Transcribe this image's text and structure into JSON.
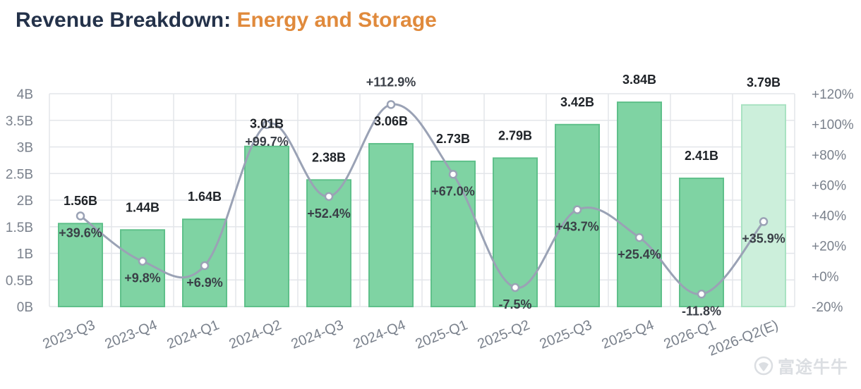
{
  "header": {
    "title_prefix": "Revenue Breakdown:",
    "title_highlight": "Energy and Storage"
  },
  "watermark": {
    "text": "富途牛牛",
    "icon": "futu-bull-logo-icon"
  },
  "colors": {
    "title": "#24324a",
    "highlight": "#e08a3c",
    "bar_fill": "#7fd3a3",
    "bar_stroke": "#5fc08a",
    "bar_estimate_fill": "#ccefdb",
    "bar_estimate_stroke": "#a9e2c2",
    "line": "#9aa2b5",
    "grid": "#e3e6ea",
    "axis_text": "#7a818c",
    "label_text": "#1f2328"
  },
  "chart_data": {
    "type": "bar",
    "title": "Revenue Breakdown: Energy and Storage",
    "categories": [
      "2023-Q3",
      "2023-Q4",
      "2024-Q1",
      "2024-Q2",
      "2024-Q3",
      "2024-Q4",
      "2025-Q1",
      "2025-Q2",
      "2025-Q3",
      "2025-Q4",
      "2026-Q1",
      "2026-Q2(E)"
    ],
    "series": [
      {
        "kind": "bar",
        "axis": "left",
        "values": [
          1.56,
          1.44,
          1.64,
          3.01,
          2.38,
          3.06,
          2.73,
          2.79,
          3.42,
          3.84,
          2.41,
          3.79
        ],
        "labels": [
          "1.56B",
          "1.44B",
          "1.64B",
          "3.01B",
          "2.38B",
          "3.06B",
          "2.73B",
          "2.79B",
          "3.42B",
          "3.84B",
          "2.41B",
          "3.79B"
        ],
        "estimated": [
          false,
          false,
          false,
          false,
          false,
          false,
          false,
          false,
          false,
          false,
          false,
          true
        ]
      },
      {
        "kind": "line",
        "axis": "right",
        "values": [
          39.6,
          9.8,
          6.9,
          99.7,
          52.4,
          112.9,
          67.0,
          -7.5,
          43.7,
          25.4,
          -11.8,
          35.9
        ],
        "labels": [
          "+39.6%",
          "+9.8%",
          "+6.9%",
          "+99.7%",
          "+52.4%",
          "+112.9%",
          "+67.0%",
          "-7.5%",
          "+43.7%",
          "+25.4%",
          "-11.8%",
          "+35.9%"
        ]
      }
    ],
    "left_axis": {
      "ylim": [
        0,
        4
      ],
      "ticks": [
        0,
        0.5,
        1,
        1.5,
        2,
        2.5,
        3,
        3.5,
        4
      ],
      "tick_labels": [
        "0B",
        "0.5B",
        "1B",
        "1.5B",
        "2B",
        "2.5B",
        "3B",
        "3.5B",
        "4B"
      ]
    },
    "right_axis": {
      "ylim": [
        -20,
        120
      ],
      "ticks": [
        -20,
        0,
        20,
        40,
        60,
        80,
        100,
        120
      ],
      "tick_labels": [
        "-20%",
        "+0%",
        "+20%",
        "+40%",
        "+60%",
        "+80%",
        "+100%",
        "+120%"
      ]
    },
    "grid": true,
    "legend": "none"
  }
}
